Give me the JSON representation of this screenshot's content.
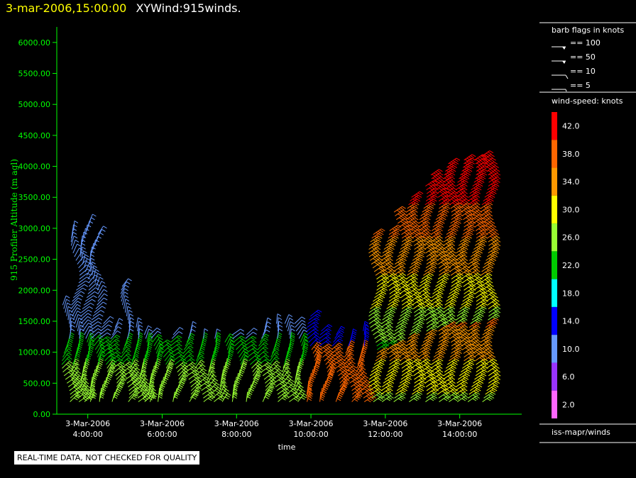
{
  "header": {
    "datetime": "3-mar-2006,15:00:00",
    "title": "XYWind:915winds."
  },
  "disclaimer": "REAL-TIME DATA, NOT CHECKED FOR QUALITY",
  "chart_data": {
    "type": "scatter",
    "subtype": "wind-barb-time-height",
    "ylabel": "915 Profiler Altitude (m agl)",
    "xlabel": "time",
    "ylim": [
      0,
      6250
    ],
    "xlim": [
      "03:10",
      "15:40"
    ],
    "y_ticks": [
      "0.00",
      "500.00",
      "1000.00",
      "1500.00",
      "2000.00",
      "2500.00",
      "3000.00",
      "3500.00",
      "4000.00",
      "4500.00",
      "5000.00",
      "5500.00",
      "6000.00"
    ],
    "x_ticks": [
      {
        "date": "3-Mar-2006",
        "time": "4:00:00"
      },
      {
        "date": "3-Mar-2006",
        "time": "6:00:00"
      },
      {
        "date": "3-Mar-2006",
        "time": "8:00:00"
      },
      {
        "date": "3-Mar-2006",
        "time": "10:00:00"
      },
      {
        "date": "3-Mar-2006",
        "time": "12:00:00"
      },
      {
        "date": "3-Mar-2006",
        "time": "14:00:00"
      }
    ],
    "barb_legend": {
      "title": "barb flags in knots",
      "items": [
        {
          "label": "== 100",
          "knots": 100
        },
        {
          "label": "== 50",
          "knots": 50
        },
        {
          "label": "== 10",
          "knots": 10
        },
        {
          "label": "== 5",
          "knots": 5
        }
      ]
    },
    "color_scale": {
      "title": "wind-speed: knots",
      "bins": [
        {
          "label": "42.0",
          "color": "#ff0000"
        },
        {
          "label": "38.0",
          "color": "#ff6600"
        },
        {
          "label": "34.0",
          "color": "#ff9900"
        },
        {
          "label": "30.0",
          "color": "#ffff00"
        },
        {
          "label": "26.0",
          "color": "#99ff33"
        },
        {
          "label": "22.0",
          "color": "#00cc00"
        },
        {
          "label": "18.0",
          "color": "#00ffff"
        },
        {
          "label": "14.0",
          "color": "#0000ff"
        },
        {
          "label": "10.0",
          "color": "#6699ff"
        },
        {
          "label": "6.0",
          "color": "#9933ff"
        },
        {
          "label": "2.0",
          "color": "#ff66ff"
        }
      ]
    },
    "source": "iss-mapr/winds",
    "profiles": [
      {
        "time": "03:25",
        "top": 1800
      },
      {
        "time": "03:40",
        "top": 3000
      },
      {
        "time": "03:55",
        "top": 3100
      },
      {
        "time": "04:10",
        "top": 2900
      },
      {
        "time": "04:25",
        "top": 1500
      },
      {
        "time": "04:40",
        "top": 1400
      },
      {
        "time": "05:00",
        "top": 2100
      },
      {
        "time": "05:15",
        "top": 1400
      },
      {
        "time": "05:30",
        "top": 1300
      },
      {
        "time": "05:45",
        "top": 1300
      },
      {
        "time": "06:00",
        "top": 1100
      },
      {
        "time": "06:20",
        "top": 1300
      },
      {
        "time": "06:40",
        "top": 1350
      },
      {
        "time": "07:00",
        "top": 1250
      },
      {
        "time": "07:20",
        "top": 1250
      },
      {
        "time": "07:40",
        "top": 1200
      },
      {
        "time": "08:00",
        "top": 1300
      },
      {
        "time": "08:20",
        "top": 1300
      },
      {
        "time": "08:40",
        "top": 1400
      },
      {
        "time": "09:00",
        "top": 1500
      },
      {
        "time": "09:20",
        "top": 1500
      },
      {
        "time": "09:40",
        "top": 1500
      },
      {
        "time": "10:00",
        "top": 1600
      },
      {
        "time": "10:20",
        "top": 1350
      },
      {
        "time": "10:40",
        "top": 1300
      },
      {
        "time": "11:00",
        "top": 1250
      },
      {
        "time": "11:20",
        "top": 1350
      },
      {
        "time": "11:40",
        "top": 2900
      },
      {
        "time": "12:00",
        "top": 3000
      },
      {
        "time": "12:20",
        "top": 3300
      },
      {
        "time": "12:40",
        "top": 3500
      },
      {
        "time": "13:00",
        "top": 3700
      },
      {
        "time": "13:20",
        "top": 3900
      },
      {
        "time": "13:40",
        "top": 4050
      },
      {
        "time": "14:00",
        "top": 4100
      },
      {
        "time": "14:20",
        "top": 4150
      },
      {
        "time": "14:40",
        "top": 4200
      }
    ]
  }
}
